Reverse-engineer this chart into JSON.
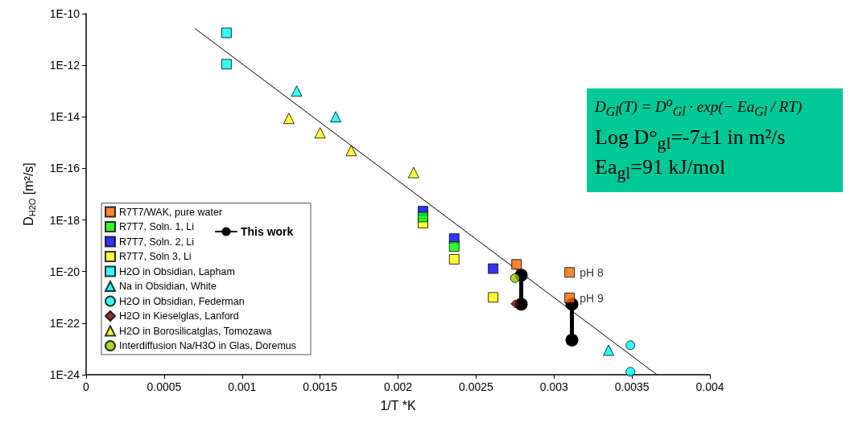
{
  "chart_data": {
    "type": "scatter",
    "xlabel": "1/T *K",
    "ylabel": "D$_{H2O}$ [m²/s]",
    "log": "y",
    "grid": false,
    "legend": "bottom left",
    "xlim": [
      0,
      0.004
    ],
    "xticks": [
      0,
      0.0005,
      0.001,
      0.0015,
      0.002,
      0.0025,
      0.003,
      0.0035,
      0.004
    ],
    "ylim": [
      1e-24,
      1e-10
    ],
    "yticks": [
      {
        "value": 1e-24,
        "label": "1E-24"
      },
      {
        "value": 1e-22,
        "label": "1E-22"
      },
      {
        "value": 1e-20,
        "label": "1E-20"
      },
      {
        "value": 1e-18,
        "label": "1E-18"
      },
      {
        "value": 1e-16,
        "label": "1E-16"
      },
      {
        "value": 1e-14,
        "label": "1E-14"
      },
      {
        "value": 1e-12,
        "label": "1E-12"
      },
      {
        "value": 1e-10,
        "label": "1E-10"
      }
    ],
    "series": [
      {
        "name": "R7T7/WAK, pure water",
        "marker": "square",
        "color": "#ff6600",
        "x": [
          0.00276,
          0.0031,
          0.0031
        ],
        "values": [
          1.9e-20,
          9.3e-21,
          9.5e-22
        ],
        "value_labels": [
          null,
          "pH 8",
          "pH 9"
        ]
      },
      {
        "name": "R7T7, Soln. 1, Li",
        "marker": "square",
        "color": "#00ff00",
        "x": [
          0.00216,
          0.00236
        ],
        "values": [
          1.3e-18,
          9.3e-20
        ]
      },
      {
        "name": "R7T7, Soln. 2, Li",
        "marker": "square",
        "color": "#0000ff",
        "x": [
          0.00216,
          0.00236,
          0.00261
        ],
        "values": [
          2.2e-18,
          1.9e-19,
          1.3e-20
        ]
      },
      {
        "name": "R7T7, Soln 3, Li",
        "marker": "square",
        "color": "#ffff00",
        "x": [
          0.00216,
          0.00236,
          0.00261
        ],
        "values": [
          7.6e-19,
          3e-20,
          1e-21
        ]
      },
      {
        "name": "H2O in Obsidian, Lapham",
        "marker": "square",
        "color": "#00ffff",
        "x": [
          0.0009,
          0.0009
        ],
        "values": [
          1.8e-11,
          1.1e-12
        ]
      },
      {
        "name": "Na in Obsidian, White",
        "marker": "triangle",
        "color": "#00ffff",
        "x": [
          0.00135,
          0.0016,
          0.00335
        ],
        "values": [
          1e-13,
          1e-14,
          9e-24
        ]
      },
      {
        "name": "H2O in Obsidian, Federman",
        "marker": "circle",
        "color": "#00ffff",
        "x": [
          0.00349,
          0.00349
        ],
        "values": [
          1.4e-23,
          1.3e-24
        ]
      },
      {
        "name": "H2O in Kieselglas, Lanford",
        "marker": "diamond",
        "color": "#800000",
        "x": [
          0.00275
        ],
        "values": [
          5.6e-22
        ]
      },
      {
        "name": "H2O in Borosilicatglas, Tomozawa",
        "marker": "triangle",
        "color": "#ffff00",
        "x": [
          0.0013,
          0.0015,
          0.0017,
          0.0021
        ],
        "values": [
          8.7e-15,
          2.4e-15,
          4.9e-16,
          6.9e-17
        ]
      },
      {
        "name": "Interdiffusion Na/H3O in Glas, Doremus",
        "marker": "circle",
        "color": "#99cc00",
        "x": [
          0.00275
        ],
        "values": [
          5.6e-21
        ]
      },
      {
        "name": "This work",
        "type": "line",
        "marker": "circle",
        "color": "#000000",
        "x": [
          0.00279,
          0.00279,
          0.003,
          0.003115,
          0.003115
        ],
        "values": [
          7.2e-21,
          5.4e-22,
          null,
          5.4e-22,
          2.2e-23
        ]
      },
      {
        "type": "line",
        "marker": "none",
        "color": "#000000",
        "x": [
          0.0007,
          0.00366
        ],
        "values": [
          2.6e-11,
          1e-24
        ]
      }
    ],
    "annotations": [
      "D$_{Gl}$(T) = D$^{o}$$_{Gl}$ · exp(− Ea$_{Gl}$ / RT)",
      "Log D°$_{gl}$=-7±1 in m²/s",
      "Ea$_{gl}$=91 kJ/mol"
    ]
  }
}
